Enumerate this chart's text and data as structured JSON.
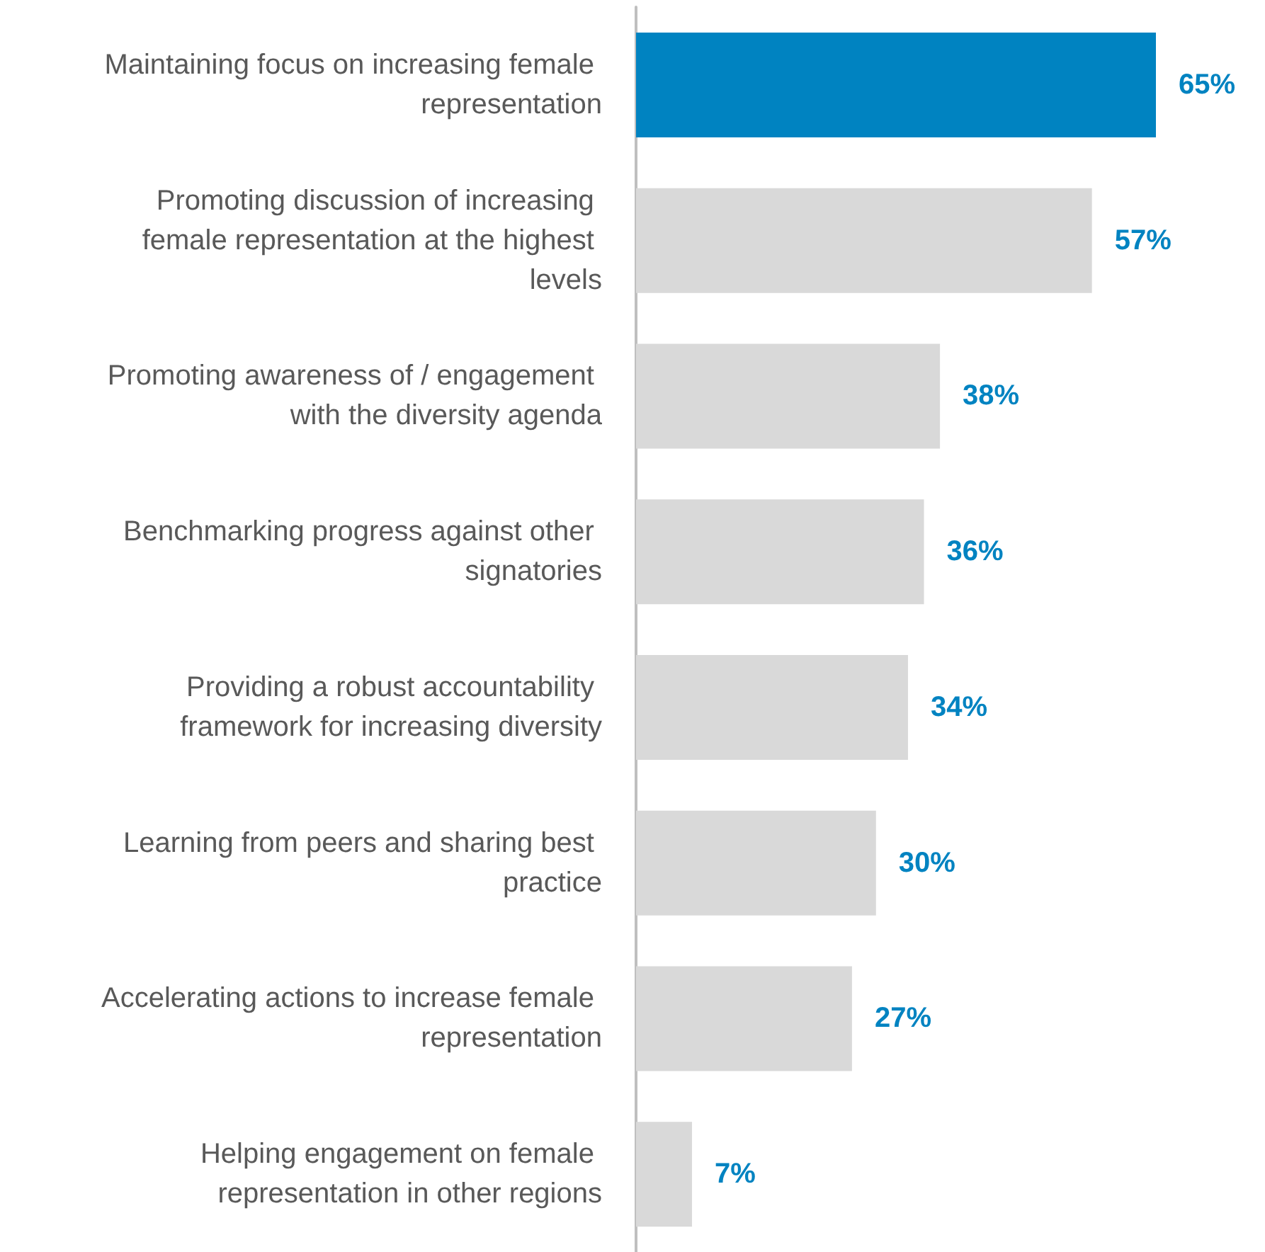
{
  "chart_data": {
    "type": "bar",
    "orientation": "horizontal",
    "categories": [
      "Maintaining focus on increasing female representation",
      "Promoting discussion of increasing female representation at the highest levels",
      "Promoting awareness of / engagement with the diversity agenda",
      "Benchmarking progress against other signatories",
      "Providing a robust accountability framework for increasing diversity",
      "Learning from peers and sharing best practice",
      "Accelerating actions to increase female representation",
      "Helping engagement on female representation in other regions"
    ],
    "values": [
      65,
      57,
      38,
      36,
      34,
      30,
      27,
      7
    ],
    "colors": [
      "#0083c1",
      "#d9d9d9",
      "#d9d9d9",
      "#d9d9d9",
      "#d9d9d9",
      "#d9d9d9",
      "#d9d9d9",
      "#d9d9d9"
    ],
    "value_labels": [
      "65%",
      "57%",
      "38%",
      "36%",
      "34%",
      "30%",
      "27%",
      "7%"
    ]
  }
}
